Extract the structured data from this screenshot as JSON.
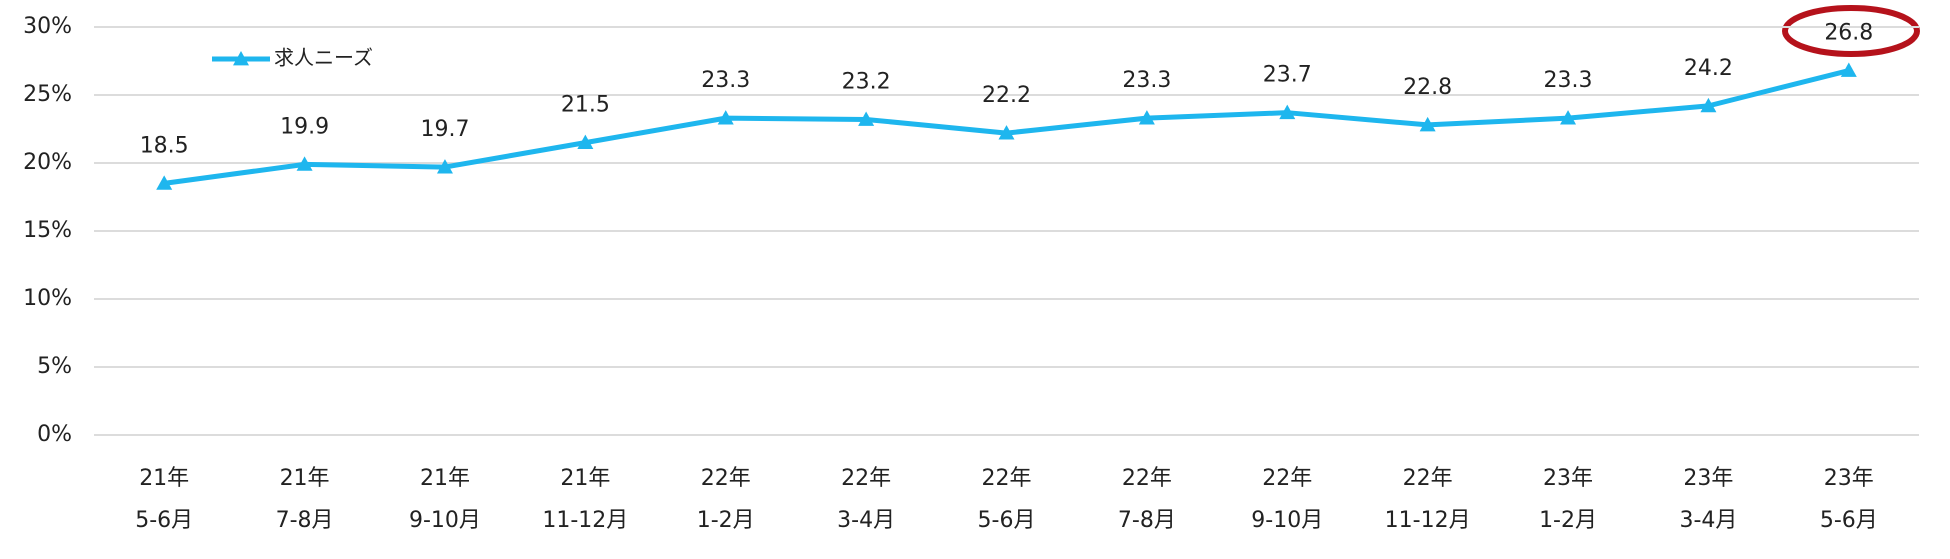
{
  "chart_data": {
    "type": "line",
    "categories": [
      [
        "21年",
        "5-6月"
      ],
      [
        "21年",
        "7-8月"
      ],
      [
        "21年",
        "9-10月"
      ],
      [
        "21年",
        "11-12月"
      ],
      [
        "22年",
        "1-2月"
      ],
      [
        "22年",
        "3-4月"
      ],
      [
        "22年",
        "5-6月"
      ],
      [
        "22年",
        "7-8月"
      ],
      [
        "22年",
        "9-10月"
      ],
      [
        "22年",
        "11-12月"
      ],
      [
        "23年",
        "1-2月"
      ],
      [
        "23年",
        "3-4月"
      ],
      [
        "23年",
        "5-6月"
      ]
    ],
    "series": [
      {
        "name": "求人ニーズ",
        "color": "#1eb6ee",
        "values": [
          18.5,
          19.9,
          19.7,
          21.5,
          23.3,
          23.2,
          22.2,
          23.3,
          23.7,
          22.8,
          23.3,
          24.2,
          26.8
        ]
      }
    ],
    "ylim": [
      0,
      30
    ],
    "yticks": [
      {
        "value": 0,
        "label": "0%"
      },
      {
        "value": 5,
        "label": "5%"
      },
      {
        "value": 10,
        "label": "10%"
      },
      {
        "value": 15,
        "label": "15%"
      },
      {
        "value": 20,
        "label": "20%"
      },
      {
        "value": 25,
        "label": "25%"
      },
      {
        "value": 30,
        "label": "30%"
      }
    ],
    "grid": true,
    "legend": "top-left"
  }
}
